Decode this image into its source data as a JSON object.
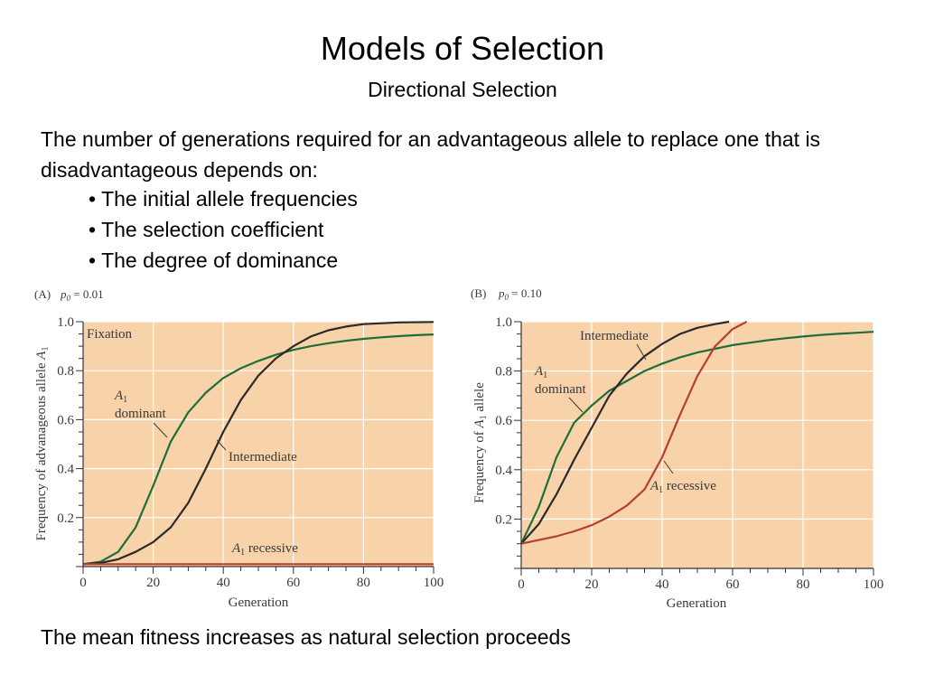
{
  "slide": {
    "title": "Models of Selection",
    "subtitle": "Directional Selection",
    "intro": "The number of generations required for an advantageous allele to replace one that is disadvantageous depends on:",
    "bullets": [
      "The initial allele frequencies",
      "The selection coefficient",
      "The degree of dominance"
    ],
    "footer": "The mean fitness increases as natural selection proceeds"
  },
  "colors": {
    "plot_bg": "#f8d2a8",
    "grid": "#ffffff",
    "dominant": "#1e6e3a",
    "intermediate": "#2a2a2a",
    "recessive": "#b5402f",
    "text": "#3a3a3a"
  },
  "chart_data": [
    {
      "type": "line",
      "panel": "(A)",
      "p0_label": "p0 = 0.01",
      "xlabel": "Generation",
      "ylabel": "Frequency of advanageous allele A1",
      "xlim": [
        0,
        100
      ],
      "ylim": [
        0,
        1.0
      ],
      "x_ticks": [
        0,
        20,
        40,
        60,
        80,
        100
      ],
      "y_ticks": [
        0.2,
        0.4,
        0.6,
        0.8,
        1.0
      ],
      "grid": true,
      "region_label": "Fixation",
      "series": [
        {
          "name": "A1 dominant",
          "color_key": "dominant",
          "points": [
            [
              0,
              0.01
            ],
            [
              5,
              0.02
            ],
            [
              10,
              0.06
            ],
            [
              15,
              0.16
            ],
            [
              20,
              0.33
            ],
            [
              25,
              0.51
            ],
            [
              30,
              0.63
            ],
            [
              35,
              0.71
            ],
            [
              40,
              0.77
            ],
            [
              45,
              0.81
            ],
            [
              50,
              0.84
            ],
            [
              55,
              0.865
            ],
            [
              60,
              0.885
            ],
            [
              65,
              0.9
            ],
            [
              70,
              0.912
            ],
            [
              75,
              0.922
            ],
            [
              80,
              0.93
            ],
            [
              85,
              0.936
            ],
            [
              90,
              0.941
            ],
            [
              95,
              0.945
            ],
            [
              100,
              0.948
            ]
          ]
        },
        {
          "name": "Intermediate",
          "color_key": "intermediate",
          "points": [
            [
              0,
              0.01
            ],
            [
              5,
              0.015
            ],
            [
              10,
              0.03
            ],
            [
              15,
              0.06
            ],
            [
              20,
              0.1
            ],
            [
              25,
              0.16
            ],
            [
              30,
              0.26
            ],
            [
              35,
              0.4
            ],
            [
              40,
              0.55
            ],
            [
              45,
              0.68
            ],
            [
              50,
              0.78
            ],
            [
              55,
              0.85
            ],
            [
              60,
              0.9
            ],
            [
              65,
              0.94
            ],
            [
              70,
              0.965
            ],
            [
              75,
              0.98
            ],
            [
              80,
              0.99
            ],
            [
              90,
              0.997
            ],
            [
              100,
              0.999
            ]
          ]
        },
        {
          "name": "A1 recessive",
          "color_key": "recessive",
          "points": [
            [
              0,
              0.01
            ],
            [
              100,
              0.01
            ]
          ]
        }
      ]
    },
    {
      "type": "line",
      "panel": "(B)",
      "p0_label": "p0 = 0.10",
      "xlabel": "Generation",
      "ylabel": "Frequency of A1 allele",
      "xlim": [
        0,
        100
      ],
      "ylim": [
        0,
        1.0
      ],
      "x_ticks": [
        0,
        20,
        40,
        60,
        80,
        100
      ],
      "y_ticks": [
        0.2,
        0.4,
        0.6,
        0.8,
        1.0
      ],
      "grid": true,
      "series": [
        {
          "name": "A1 dominant",
          "color_key": "dominant",
          "points": [
            [
              0,
              0.1
            ],
            [
              5,
              0.25
            ],
            [
              10,
              0.45
            ],
            [
              15,
              0.59
            ],
            [
              20,
              0.66
            ],
            [
              25,
              0.72
            ],
            [
              30,
              0.76
            ],
            [
              35,
              0.8
            ],
            [
              40,
              0.83
            ],
            [
              45,
              0.855
            ],
            [
              50,
              0.875
            ],
            [
              55,
              0.89
            ],
            [
              60,
              0.905
            ],
            [
              65,
              0.915
            ],
            [
              70,
              0.925
            ],
            [
              75,
              0.933
            ],
            [
              80,
              0.94
            ],
            [
              85,
              0.946
            ],
            [
              90,
              0.951
            ],
            [
              95,
              0.955
            ],
            [
              100,
              0.959
            ]
          ]
        },
        {
          "name": "Intermediate",
          "color_key": "intermediate",
          "points": [
            [
              0,
              0.1
            ],
            [
              5,
              0.18
            ],
            [
              10,
              0.3
            ],
            [
              15,
              0.44
            ],
            [
              20,
              0.57
            ],
            [
              25,
              0.7
            ],
            [
              30,
              0.79
            ],
            [
              35,
              0.86
            ],
            [
              40,
              0.91
            ],
            [
              45,
              0.95
            ],
            [
              50,
              0.975
            ],
            [
              55,
              0.99
            ],
            [
              59,
              1.0
            ]
          ]
        },
        {
          "name": "A1 recessive",
          "color_key": "recessive",
          "points": [
            [
              0,
              0.1
            ],
            [
              5,
              0.115
            ],
            [
              10,
              0.13
            ],
            [
              15,
              0.15
            ],
            [
              20,
              0.175
            ],
            [
              25,
              0.21
            ],
            [
              30,
              0.255
            ],
            [
              35,
              0.32
            ],
            [
              40,
              0.45
            ],
            [
              45,
              0.62
            ],
            [
              50,
              0.78
            ],
            [
              55,
              0.9
            ],
            [
              60,
              0.97
            ],
            [
              64,
              1.0
            ]
          ]
        }
      ],
      "labels": {
        "intermediate": "Intermediate",
        "dominant_a": "A1",
        "dominant_b": "dominant",
        "recessive": "A1 recessive"
      }
    }
  ]
}
